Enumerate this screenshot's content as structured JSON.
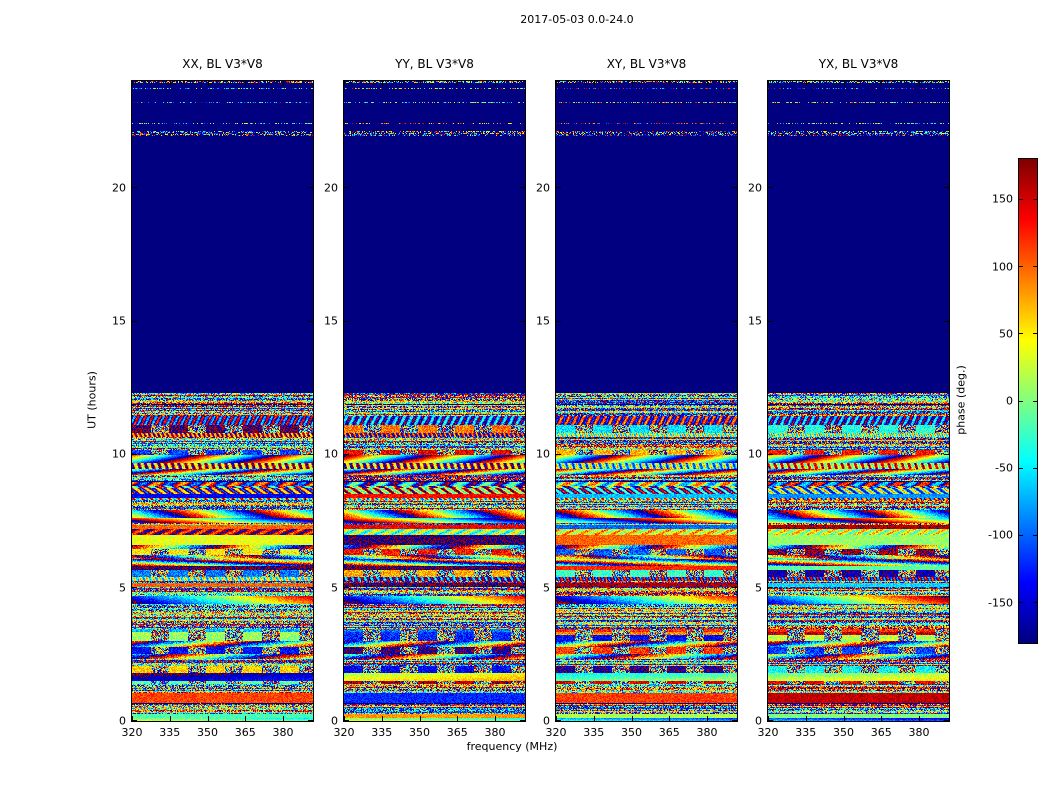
{
  "figure": {
    "title": "2017-05-03 0.0-24.0"
  },
  "panels": [
    {
      "id": "XX",
      "title": "XX, BL V3*V8"
    },
    {
      "id": "YY",
      "title": "YY, BL V3*V8"
    },
    {
      "id": "XY",
      "title": "XY, BL V3*V8"
    },
    {
      "id": "YX",
      "title": "YX, BL V3*V8"
    }
  ],
  "axes": {
    "xlabel": "frequency (MHz)",
    "ylabel": "UT (hours)",
    "x_ticks": [
      320,
      335,
      350,
      365,
      380
    ],
    "x_min": 320,
    "x_max": 391.5,
    "y_ticks": [
      0,
      5,
      10,
      15,
      20
    ],
    "y_min": 0,
    "y_max": 24
  },
  "colorbar": {
    "label": "phase (deg.)",
    "ticks": [
      150,
      100,
      50,
      0,
      -50,
      -100,
      -150
    ],
    "min": -180,
    "max": 180,
    "colormap": "jet"
  },
  "chart_data": {
    "type": "heatmap",
    "title": "2017-05-03 0.0-24.0",
    "subplots": [
      "XX, BL V3*V8",
      "YY, BL V3*V8",
      "XY, BL V3*V8",
      "YX, BL V3*V8"
    ],
    "x_axis": {
      "label": "frequency (MHz)",
      "range_mhz": [
        320,
        391.5
      ],
      "ticks": [
        320,
        335,
        350,
        365,
        380
      ]
    },
    "y_axis": {
      "label": "UT (hours)",
      "range_hours": [
        0,
        24
      ],
      "ticks": [
        0,
        5,
        10,
        15,
        20
      ]
    },
    "color_axis": {
      "label": "phase (deg.)",
      "range_deg": [
        -180,
        180
      ],
      "ticks": [
        150,
        100,
        50,
        0,
        -50,
        -100,
        -150
      ],
      "colormap": "jet"
    },
    "regions": [
      {
        "ut_hours": [
          0,
          12.3
        ],
        "description": "dense noisy visibility phases: horizontal multicolor bands, diagonal fringe patterns, occasional flat cyan/red/green bands and thin dark separators"
      },
      {
        "ut_hours": [
          12.3,
          21.3
        ],
        "description": "uniform dark navy blue, constant phase near -180 deg (no fringes / no data)"
      },
      {
        "ut_hours": [
          21.3,
          24
        ],
        "description": "mostly dark navy with sparse thin noisy horizontal stripes aligned across all four polarization panels"
      }
    ]
  }
}
